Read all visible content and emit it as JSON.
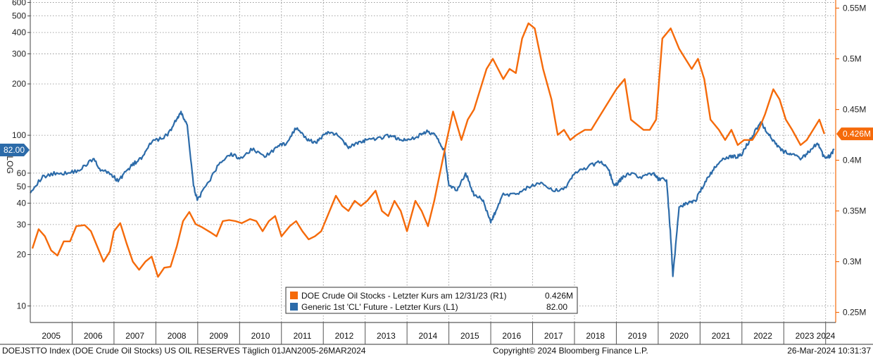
{
  "chart_data": {
    "type": "line",
    "x_axis": {
      "ticks": [
        "2005",
        "2006",
        "2007",
        "2008",
        "2009",
        "2010",
        "2011",
        "2012",
        "2013",
        "2014",
        "2015",
        "2016",
        "2017",
        "2018",
        "2019",
        "2020",
        "2021",
        "2022",
        "2023",
        "2024"
      ],
      "range": [
        "2005-01-01",
        "2024-03-26"
      ]
    },
    "y_left": {
      "scale": "log",
      "range": [
        8,
        620
      ],
      "ticks": [
        10,
        20,
        30,
        40,
        50,
        60,
        100,
        200,
        300,
        400,
        500,
        600
      ],
      "label": "LOG"
    },
    "y_right": {
      "scale": "linear",
      "range": [
        0.24,
        0.558
      ],
      "ticks": [
        "0.25M",
        "0.3M",
        "0.35M",
        "0.4M",
        "0.45M",
        "0.5M",
        "0.55M"
      ]
    },
    "grid": "dotted",
    "series": [
      {
        "name": "DOE Crude Oil Stocks - Letzter Kurs am 12/31/23 (R1)",
        "value_label": "0.426M",
        "color": "#f56a0a",
        "axis": "right",
        "x": [
          2005.05,
          2005.2,
          2005.35,
          2005.5,
          2005.65,
          2005.8,
          2005.95,
          2006.1,
          2006.3,
          2006.45,
          2006.6,
          2006.75,
          2006.9,
          2007.0,
          2007.15,
          2007.3,
          2007.45,
          2007.6,
          2007.75,
          2007.9,
          2008.05,
          2008.2,
          2008.35,
          2008.5,
          2008.65,
          2008.8,
          2008.95,
          2009.1,
          2009.3,
          2009.45,
          2009.6,
          2009.75,
          2009.9,
          2010.05,
          2010.25,
          2010.4,
          2010.55,
          2010.7,
          2010.85,
          2011.0,
          2011.2,
          2011.35,
          2011.5,
          2011.65,
          2011.8,
          2011.95,
          2012.1,
          2012.3,
          2012.45,
          2012.6,
          2012.75,
          2012.9,
          2013.05,
          2013.25,
          2013.4,
          2013.55,
          2013.7,
          2013.85,
          2014.0,
          2014.2,
          2014.35,
          2014.5,
          2014.65,
          2014.8,
          2014.95,
          2015.1,
          2015.3,
          2015.45,
          2015.6,
          2015.75,
          2015.9,
          2016.05,
          2016.3,
          2016.45,
          2016.6,
          2016.75,
          2016.9,
          2017.05,
          2017.25,
          2017.45,
          2017.6,
          2017.75,
          2017.9,
          2018.05,
          2018.25,
          2018.4,
          2018.55,
          2018.7,
          2018.85,
          2019.0,
          2019.2,
          2019.35,
          2019.5,
          2019.65,
          2019.8,
          2019.95,
          2020.1,
          2020.3,
          2020.5,
          2020.65,
          2020.8,
          2020.95,
          2021.1,
          2021.25,
          2021.45,
          2021.6,
          2021.75,
          2021.9,
          2022.05,
          2022.25,
          2022.4,
          2022.55,
          2022.75,
          2022.9,
          2023.05,
          2023.2,
          2023.4,
          2023.55,
          2023.7,
          2023.85,
          2023.97
        ],
        "y": [
          0.313,
          0.332,
          0.325,
          0.311,
          0.306,
          0.32,
          0.32,
          0.335,
          0.336,
          0.33,
          0.315,
          0.3,
          0.31,
          0.33,
          0.338,
          0.318,
          0.3,
          0.292,
          0.3,
          0.305,
          0.285,
          0.294,
          0.295,
          0.315,
          0.34,
          0.349,
          0.337,
          0.334,
          0.329,
          0.325,
          0.34,
          0.341,
          0.34,
          0.338,
          0.342,
          0.34,
          0.33,
          0.34,
          0.345,
          0.325,
          0.335,
          0.34,
          0.33,
          0.322,
          0.325,
          0.33,
          0.345,
          0.365,
          0.355,
          0.35,
          0.36,
          0.355,
          0.36,
          0.37,
          0.35,
          0.345,
          0.36,
          0.35,
          0.33,
          0.36,
          0.35,
          0.335,
          0.36,
          0.39,
          0.42,
          0.448,
          0.42,
          0.44,
          0.45,
          0.47,
          0.49,
          0.5,
          0.48,
          0.49,
          0.486,
          0.52,
          0.535,
          0.53,
          0.49,
          0.46,
          0.425,
          0.43,
          0.42,
          0.425,
          0.43,
          0.43,
          0.44,
          0.45,
          0.46,
          0.47,
          0.48,
          0.44,
          0.435,
          0.43,
          0.43,
          0.44,
          0.52,
          0.53,
          0.51,
          0.5,
          0.49,
          0.5,
          0.48,
          0.44,
          0.43,
          0.42,
          0.43,
          0.415,
          0.42,
          0.42,
          0.43,
          0.445,
          0.47,
          0.46,
          0.44,
          0.43,
          0.415,
          0.42,
          0.43,
          0.44,
          0.426
        ]
      },
      {
        "name": "Generic 1st 'CL' Future - Letzter Kurs (L1)",
        "value_label": "82.00",
        "color": "#2c6ba9",
        "axis": "left",
        "x": [
          2005.0,
          2005.3,
          2005.6,
          2005.9,
          2006.2,
          2006.5,
          2006.7,
          2006.9,
          2007.1,
          2007.3,
          2007.5,
          2007.7,
          2007.9,
          2008.1,
          2008.3,
          2008.5,
          2008.6,
          2008.75,
          2008.9,
          2008.99,
          2009.2,
          2009.5,
          2009.8,
          2010.0,
          2010.3,
          2010.6,
          2010.9,
          2011.1,
          2011.35,
          2011.6,
          2011.8,
          2012.0,
          2012.2,
          2012.45,
          2012.6,
          2012.8,
          2013.0,
          2013.3,
          2013.6,
          2013.8,
          2014.0,
          2014.3,
          2014.5,
          2014.7,
          2014.9,
          2015.0,
          2015.2,
          2015.4,
          2015.6,
          2015.8,
          2016.0,
          2016.1,
          2016.3,
          2016.6,
          2016.9,
          2017.2,
          2017.5,
          2017.8,
          2018.0,
          2018.3,
          2018.6,
          2018.8,
          2018.95,
          2019.1,
          2019.3,
          2019.6,
          2019.9,
          2020.0,
          2020.2,
          2020.3,
          2020.35,
          2020.5,
          2020.7,
          2020.9,
          2021.1,
          2021.3,
          2021.5,
          2021.7,
          2021.9,
          2022.0,
          2022.2,
          2022.45,
          2022.6,
          2022.8,
          2023.0,
          2023.2,
          2023.4,
          2023.6,
          2023.8,
          2023.95,
          2024.1,
          2024.2
        ],
        "y": [
          47,
          57,
          60,
          60,
          63,
          73,
          62,
          60,
          54,
          62,
          69,
          75,
          92,
          95,
          102,
          125,
          135,
          115,
          50,
          42,
          50,
          67,
          78,
          73,
          83,
          75,
          85,
          90,
          110,
          95,
          90,
          100,
          105,
          95,
          85,
          90,
          93,
          95,
          100,
          95,
          93,
          100,
          105,
          100,
          80,
          50,
          48,
          60,
          45,
          42,
          31,
          35,
          45,
          45,
          50,
          52,
          47,
          50,
          60,
          65,
          70,
          65,
          50,
          55,
          60,
          57,
          60,
          55,
          55,
          25,
          15,
          38,
          40,
          42,
          52,
          62,
          72,
          75,
          75,
          78,
          95,
          120,
          105,
          90,
          80,
          78,
          72,
          80,
          90,
          75,
          75,
          82
        ]
      }
    ],
    "legend": "bottom-center",
    "footer_left": "DOEJSTTO Index (DOE Crude Oil Stocks) US OIL RESERVES  Täglich 01JAN2005-26MAR2024",
    "footer_center": "Copyright© 2024 Bloomberg Finance L.P.",
    "footer_right": "26-Mar-2024 10:31:37"
  }
}
